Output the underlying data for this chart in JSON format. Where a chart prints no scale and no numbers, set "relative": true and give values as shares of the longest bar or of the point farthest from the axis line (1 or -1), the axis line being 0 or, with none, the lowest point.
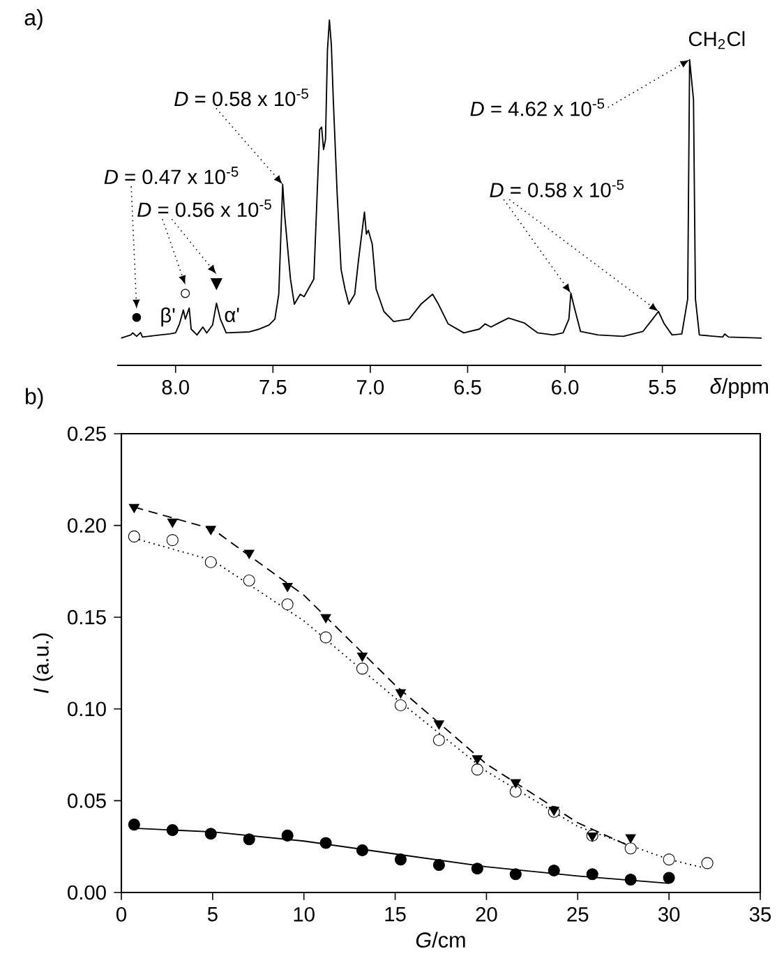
{
  "chart_data": [
    {
      "type": "line",
      "title": "a)",
      "xlabel": "*δ*/ppm",
      "relative": true,
      "xlim": [
        8.3,
        4.99
      ],
      "xticks": [
        {
          "value": 8,
          "label": "8.0"
        },
        7.5,
        {
          "value": 7,
          "label": "7.0"
        },
        6.5,
        {
          "value": 6,
          "label": "6.0"
        },
        5.5
      ],
      "series": [
        {
          "color": "#000000",
          "x": [
            8.28,
            8.23,
            8.22,
            8.2,
            8.18,
            8.17,
            8.08,
            8.03,
            8.0,
            7.98,
            7.96,
            7.95,
            7.93,
            7.92,
            7.89,
            7.86,
            7.84,
            7.81,
            7.79,
            7.77,
            7.74,
            7.62,
            7.57,
            7.52,
            7.49,
            7.47,
            7.45,
            7.44,
            7.41,
            7.39,
            7.36,
            7.34,
            7.29,
            7.26,
            7.25,
            7.24,
            7.23,
            7.22,
            7.21,
            7.2,
            7.19,
            7.17,
            7.15,
            7.13,
            7.11,
            7.08,
            7.06,
            7.03,
            7.02,
            7.01,
            6.99,
            6.97,
            6.93,
            6.88,
            6.8,
            6.74,
            6.68,
            6.65,
            6.6,
            6.52,
            6.44,
            6.41,
            6.38,
            6.34,
            6.29,
            6.21,
            6.14,
            6.06,
            6.01,
            5.98,
            5.97,
            5.95,
            5.92,
            5.83,
            5.7,
            5.6,
            5.55,
            5.52,
            5.49,
            5.45,
            5.4,
            5.37,
            5.36,
            5.34,
            5.33,
            5.31,
            5.19,
            5.18,
            5.16,
            4.99
          ],
          "values": [
            0.079,
            0.088,
            0.094,
            0.084,
            0.095,
            0.082,
            0.088,
            0.091,
            0.094,
            0.12,
            0.16,
            0.134,
            0.166,
            0.105,
            0.088,
            0.111,
            0.094,
            0.117,
            0.18,
            0.134,
            0.094,
            0.097,
            0.105,
            0.117,
            0.134,
            0.206,
            0.524,
            0.437,
            0.25,
            0.177,
            0.206,
            0.199,
            0.25,
            0.683,
            0.69,
            0.625,
            0.654,
            0.913,
            1,
            0.928,
            0.769,
            0.495,
            0.278,
            0.221,
            0.177,
            0.206,
            0.307,
            0.444,
            0.38,
            0.391,
            0.351,
            0.221,
            0.156,
            0.127,
            0.134,
            0.177,
            0.206,
            0.177,
            0.12,
            0.094,
            0.105,
            0.12,
            0.111,
            0.123,
            0.137,
            0.123,
            0.094,
            0.088,
            0.094,
            0.134,
            0.209,
            0.163,
            0.098,
            0.088,
            0.084,
            0.098,
            0.134,
            0.156,
            0.12,
            0.088,
            0.091,
            0.192,
            0.885,
            0.769,
            0.192,
            0.088,
            0.082,
            0.091,
            0.082,
            0.079
          ]
        }
      ],
      "annotations": [
        "●",
        "β'",
        "○",
        "▼",
        "α'",
        "*D* = 0.47 x 10$^{-5}$",
        "*D* = 0.56 x 10$^{-5}$",
        {
          "text": "*D* = 0.58 x 10$^{-5}$",
          "x": 7.45,
          "y": 0.524
        },
        {
          "text": "*D* = 0.58 x 10$^{-5}$",
          "x": 5.97,
          "y": 0.209
        },
        {
          "text": "*D* = 4.62 x 10$^{-5}$",
          "x": 5.36,
          "y": 0.885
        },
        {
          "text": "CH$_{2}$Cl",
          "x": 5.36,
          "y": 0.885
        }
      ]
    },
    {
      "type": "scatter",
      "title": "b)",
      "xlabel": "*G*/cm",
      "ylabel": "*I* (a.u.)",
      "xlim": [
        0,
        35
      ],
      "ylim": [
        0,
        0.25
      ],
      "xticks": [
        0,
        5,
        10,
        15,
        20,
        25,
        30,
        35
      ],
      "yticks": [
        {
          "value": 0,
          "label": "0.00"
        },
        0.05,
        {
          "value": 0.1,
          "label": "0.10"
        },
        0.15,
        {
          "value": 0.2,
          "label": "0.20"
        },
        0.25
      ],
      "series": [
        {
          "type": "line",
          "line_style": "dashed",
          "marker": "none",
          "color": "#000000",
          "x": [
            0.7,
            5,
            10,
            15,
            20,
            25,
            27.9
          ],
          "values": [
            0.21,
            0.198,
            0.162,
            0.113,
            0.07,
            0.038,
            0.025
          ]
        },
        {
          "type": "line",
          "line_style": "dotted",
          "marker": "none",
          "color": "#000000",
          "x": [
            0.7,
            5,
            10,
            15,
            20,
            25,
            30,
            32.1
          ],
          "values": [
            0.193,
            0.181,
            0.148,
            0.106,
            0.066,
            0.036,
            0.018,
            0.013
          ]
        },
        {
          "type": "line",
          "line_style": "solid",
          "marker": "none",
          "color": "#000000",
          "x": [
            0.7,
            5,
            10,
            15,
            20,
            25,
            30
          ],
          "values": [
            0.035,
            0.033,
            0.028,
            0.021,
            0.014,
            0.009,
            0.005
          ]
        },
        {
          "marker": "circle",
          "color": "#ffffff",
          "x": [
            0.7,
            2.8,
            4.9,
            7.0,
            9.1,
            11.2,
            13.2,
            15.3,
            17.4,
            19.5,
            21.6,
            23.7,
            25.8,
            27.9,
            30.0,
            32.1
          ],
          "values": [
            0.194,
            0.192,
            0.18,
            0.17,
            0.157,
            0.139,
            0.122,
            0.102,
            0.083,
            0.067,
            0.055,
            0.044,
            0.031,
            0.024,
            0.018,
            0.016
          ]
        },
        {
          "marker": "circle",
          "color": "#000000",
          "x": [
            0.7,
            2.8,
            4.9,
            7.0,
            9.1,
            11.2,
            13.2,
            15.3,
            17.4,
            19.5,
            21.6,
            23.7,
            25.8,
            27.9,
            30.0
          ],
          "values": [
            0.037,
            0.034,
            0.032,
            0.029,
            0.031,
            0.027,
            0.023,
            0.018,
            0.015,
            0.013,
            0.01,
            0.012,
            0.01,
            0.007,
            0.008
          ]
        },
        {
          "marker": "triangle",
          "color": "#000000",
          "x": [
            0.7,
            2.8,
            4.9,
            7.0,
            9.1,
            11.2,
            13.2,
            15.3,
            17.4,
            19.5,
            21.6,
            23.7,
            25.8,
            27.9
          ],
          "values": [
            0.21,
            0.202,
            0.198,
            0.185,
            0.167,
            0.15,
            0.129,
            0.109,
            0.092,
            0.073,
            0.06,
            0.045,
            0.031,
            0.03
          ]
        }
      ]
    }
  ]
}
